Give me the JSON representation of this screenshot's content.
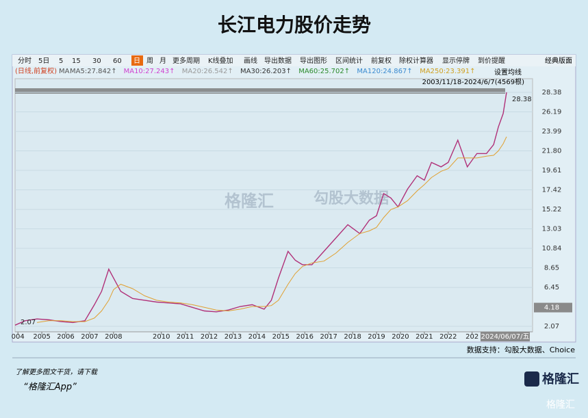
{
  "header": {
    "title": "长江电力股价走势"
  },
  "toolbar": {
    "items": [
      "分时",
      "5日",
      "5",
      "15",
      "30",
      "60",
      "日",
      "周",
      "月",
      "更多周期",
      "K线叠加",
      "画线",
      "导出数据",
      "导出图形",
      "区间统计",
      "前复权",
      "除权计算器",
      "显示停牌",
      "到价提醒"
    ],
    "active": 6,
    "right": "经典版面"
  },
  "indicator_bar": {
    "mode": "(日线,前复权)",
    "ma": "MA",
    "items": [
      {
        "text": "MA5:27.842↑",
        "color": "#555555"
      },
      {
        "text": "MA10:27.243↑",
        "color": "#d040d0"
      },
      {
        "text": "MA20:26.542↑",
        "color": "#999999"
      },
      {
        "text": "MA30:26.203↑",
        "color": "#333333"
      },
      {
        "text": "MA60:25.702↑",
        "color": "#2a8a2a"
      },
      {
        "text": "MA120:24.867↑",
        "color": "#3a8ad0"
      },
      {
        "text": "MA250:23.391↑",
        "color": "#d0a020"
      }
    ],
    "settings": "设置均线",
    "range": "2003/11/18-2024/6/7(4569根)"
  },
  "chart_data": {
    "type": "line",
    "x": [
      2003.88,
      2004.3,
      2004.8,
      2005.3,
      2005.8,
      2006.3,
      2006.8,
      2007.2,
      2007.5,
      2007.8,
      2008.0,
      2008.3,
      2008.8,
      2009.3,
      2009.8,
      2010.3,
      2010.8,
      2011.3,
      2011.8,
      2012.3,
      2012.8,
      2013.3,
      2013.8,
      2014.3,
      2014.6,
      2014.9,
      2015.3,
      2015.6,
      2015.9,
      2016.3,
      2016.8,
      2017.3,
      2017.8,
      2018.3,
      2018.7,
      2019.0,
      2019.3,
      2019.6,
      2019.9,
      2020.3,
      2020.7,
      2021.0,
      2021.3,
      2021.7,
      2022.0,
      2022.4,
      2022.8,
      2023.2,
      2023.6,
      2023.9,
      2024.1,
      2024.3,
      2024.44
    ],
    "series": [
      {
        "name": "price",
        "color": "#b03078",
        "values": [
          2.2,
          2.7,
          2.9,
          2.8,
          2.6,
          2.5,
          2.7,
          4.5,
          6.0,
          8.5,
          7.5,
          6.0,
          5.2,
          5.0,
          4.8,
          4.7,
          4.6,
          4.2,
          3.8,
          3.7,
          3.9,
          4.3,
          4.5,
          4.0,
          5.0,
          7.5,
          10.5,
          9.5,
          9.0,
          9.0,
          10.5,
          12.0,
          13.5,
          12.5,
          14.0,
          14.5,
          17.0,
          16.5,
          15.5,
          17.5,
          19.0,
          18.5,
          20.5,
          20.0,
          20.5,
          23.0,
          20.0,
          21.5,
          21.5,
          22.5,
          24.5,
          26.0,
          28.38
        ]
      },
      {
        "name": "MA250",
        "color": "#e0a030",
        "values": [
          null,
          null,
          2.5,
          2.7,
          2.7,
          2.6,
          2.6,
          3.0,
          3.8,
          5.0,
          6.2,
          6.8,
          6.3,
          5.5,
          5.0,
          4.8,
          4.7,
          4.5,
          4.2,
          3.9,
          3.8,
          4.0,
          4.3,
          4.3,
          4.4,
          5.0,
          6.8,
          8.0,
          8.8,
          9.2,
          9.4,
          10.3,
          11.5,
          12.5,
          12.8,
          13.2,
          14.3,
          15.2,
          15.5,
          16.2,
          17.3,
          18.0,
          18.8,
          19.5,
          19.8,
          21.0,
          21.0,
          21.0,
          21.2,
          21.3,
          21.8,
          22.6,
          23.39
        ]
      }
    ],
    "xlim": [
      2003.88,
      2024.44
    ],
    "xticks": [
      {
        "value": 2004,
        "label": "004"
      },
      2005,
      2006,
      2007,
      2008,
      2010,
      2011,
      2012,
      2013,
      2014,
      2015,
      2016,
      2017,
      2018,
      2019,
      2020,
      2021,
      2022,
      {
        "value": 2023,
        "label": "202"
      }
    ],
    "ylim": [
      2.07,
      28.38
    ],
    "yticks": [
      {
        "value": 28.38,
        "label": "28.38"
      },
      26.19,
      23.99,
      {
        "value": 21.8,
        "label": "21.80"
      },
      19.61,
      17.42,
      15.22,
      13.03,
      10.84,
      8.65,
      6.45,
      2.07
    ],
    "high_label": 28.38,
    "low_label": 2.07,
    "cursor_price": 4.18,
    "cursor_date": "2024/06/07/五"
  },
  "footer": {
    "source": "数据支持：勾股大数据、Choice",
    "promo": "了解更多图文干货，请下载",
    "app": "“格隆汇App”",
    "logo": "格隆汇",
    "watermark_left": "格隆汇",
    "watermark_right": "勾股大数据",
    "corner": "格隆汇"
  }
}
